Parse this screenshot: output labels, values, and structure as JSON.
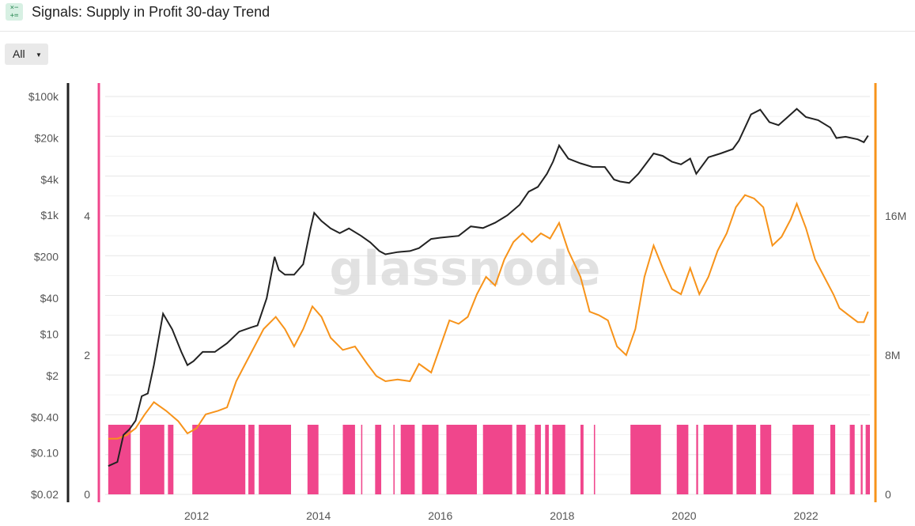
{
  "header": {
    "title": "Signals: Supply in Profit 30-day Trend",
    "icon": "calculator-icon"
  },
  "controls": {
    "range_label": "All"
  },
  "watermark": "glassnode",
  "colors": {
    "price": "#222222",
    "supply": "#f7931a",
    "signal": "#f0468c",
    "grid": "#e6e6e6"
  },
  "chart_data": {
    "type": "line",
    "x_ticks": [
      "2012",
      "2014",
      "2016",
      "2018",
      "2020",
      "2022"
    ],
    "x_range": [
      2010.5,
      2023.05
    ],
    "y_price_ticks": [
      "$100k",
      "$20k",
      "$4k",
      "$1k",
      "$200",
      "$40",
      "$10",
      "$2",
      "$0.40",
      "$0.10",
      "$0.02"
    ],
    "y_price_scale": "log",
    "y_signal_ticks": [
      "4",
      "2",
      "0"
    ],
    "y_signal_range": [
      0,
      4
    ],
    "y_supply_ticks": [
      "16M",
      "8M",
      "0"
    ],
    "y_supply_range": [
      0,
      16000000
    ],
    "grid": true,
    "series": [
      {
        "axis": "price",
        "values": [
          [
            2010.55,
            0.06
          ],
          [
            2010.7,
            0.07
          ],
          [
            2010.8,
            0.2
          ],
          [
            2010.9,
            0.25
          ],
          [
            2011.0,
            0.35
          ],
          [
            2011.1,
            0.9
          ],
          [
            2011.2,
            1.0
          ],
          [
            2011.3,
            3
          ],
          [
            2011.45,
            22
          ],
          [
            2011.6,
            12
          ],
          [
            2011.75,
            5
          ],
          [
            2011.85,
            3
          ],
          [
            2011.95,
            3.5
          ],
          [
            2012.1,
            5
          ],
          [
            2012.3,
            5
          ],
          [
            2012.5,
            7
          ],
          [
            2012.7,
            11
          ],
          [
            2012.9,
            13
          ],
          [
            2013.0,
            14
          ],
          [
            2013.15,
            40
          ],
          [
            2013.28,
            200
          ],
          [
            2013.35,
            120
          ],
          [
            2013.45,
            100
          ],
          [
            2013.6,
            100
          ],
          [
            2013.75,
            150
          ],
          [
            2013.87,
            600
          ],
          [
            2013.93,
            1100
          ],
          [
            2014.05,
            800
          ],
          [
            2014.2,
            600
          ],
          [
            2014.35,
            500
          ],
          [
            2014.5,
            600
          ],
          [
            2014.7,
            450
          ],
          [
            2014.85,
            350
          ],
          [
            2015.0,
            250
          ],
          [
            2015.1,
            220
          ],
          [
            2015.3,
            240
          ],
          [
            2015.5,
            250
          ],
          [
            2015.65,
            280
          ],
          [
            2015.85,
            400
          ],
          [
            2016.0,
            420
          ],
          [
            2016.3,
            450
          ],
          [
            2016.5,
            650
          ],
          [
            2016.7,
            610
          ],
          [
            2016.9,
            750
          ],
          [
            2017.1,
            1000
          ],
          [
            2017.3,
            1500
          ],
          [
            2017.45,
            2500
          ],
          [
            2017.6,
            3000
          ],
          [
            2017.75,
            5000
          ],
          [
            2017.85,
            8000
          ],
          [
            2017.95,
            15000
          ],
          [
            2018.1,
            9000
          ],
          [
            2018.3,
            7500
          ],
          [
            2018.5,
            6500
          ],
          [
            2018.7,
            6500
          ],
          [
            2018.85,
            4000
          ],
          [
            2018.95,
            3700
          ],
          [
            2019.1,
            3500
          ],
          [
            2019.25,
            5000
          ],
          [
            2019.4,
            8000
          ],
          [
            2019.5,
            11000
          ],
          [
            2019.65,
            10000
          ],
          [
            2019.8,
            8000
          ],
          [
            2019.95,
            7200
          ],
          [
            2020.1,
            9000
          ],
          [
            2020.2,
            5000
          ],
          [
            2020.4,
            9500
          ],
          [
            2020.6,
            11000
          ],
          [
            2020.8,
            13000
          ],
          [
            2020.9,
            18000
          ],
          [
            2021.0,
            30000
          ],
          [
            2021.1,
            50000
          ],
          [
            2021.25,
            60000
          ],
          [
            2021.4,
            37000
          ],
          [
            2021.55,
            33000
          ],
          [
            2021.7,
            45000
          ],
          [
            2021.85,
            62000
          ],
          [
            2022.0,
            45000
          ],
          [
            2022.2,
            40000
          ],
          [
            2022.4,
            30000
          ],
          [
            2022.5,
            20000
          ],
          [
            2022.65,
            21000
          ],
          [
            2022.85,
            19000
          ],
          [
            2022.95,
            17000
          ],
          [
            2023.02,
            22000
          ]
        ]
      },
      {
        "axis": "supply",
        "values": [
          [
            2010.55,
            3.2
          ],
          [
            2010.7,
            3.2
          ],
          [
            2010.85,
            3.4
          ],
          [
            2011.0,
            3.8
          ],
          [
            2011.15,
            4.6
          ],
          [
            2011.3,
            5.3
          ],
          [
            2011.5,
            4.8
          ],
          [
            2011.7,
            4.2
          ],
          [
            2011.85,
            3.5
          ],
          [
            2012.0,
            3.8
          ],
          [
            2012.15,
            4.6
          ],
          [
            2012.35,
            4.8
          ],
          [
            2012.5,
            5.0
          ],
          [
            2012.65,
            6.5
          ],
          [
            2012.8,
            7.5
          ],
          [
            2012.95,
            8.5
          ],
          [
            2013.1,
            9.5
          ],
          [
            2013.3,
            10.2
          ],
          [
            2013.45,
            9.5
          ],
          [
            2013.6,
            8.5
          ],
          [
            2013.75,
            9.5
          ],
          [
            2013.9,
            10.8
          ],
          [
            2014.05,
            10.2
          ],
          [
            2014.2,
            9.0
          ],
          [
            2014.4,
            8.3
          ],
          [
            2014.6,
            8.5
          ],
          [
            2014.8,
            7.5
          ],
          [
            2014.95,
            6.8
          ],
          [
            2015.1,
            6.5
          ],
          [
            2015.3,
            6.6
          ],
          [
            2015.5,
            6.5
          ],
          [
            2015.65,
            7.5
          ],
          [
            2015.85,
            7.0
          ],
          [
            2016.0,
            8.5
          ],
          [
            2016.15,
            10.0
          ],
          [
            2016.3,
            9.8
          ],
          [
            2016.45,
            10.2
          ],
          [
            2016.6,
            11.5
          ],
          [
            2016.75,
            12.5
          ],
          [
            2016.9,
            12.0
          ],
          [
            2017.05,
            13.5
          ],
          [
            2017.2,
            14.5
          ],
          [
            2017.35,
            15.0
          ],
          [
            2017.5,
            14.5
          ],
          [
            2017.65,
            15.0
          ],
          [
            2017.8,
            14.7
          ],
          [
            2017.95,
            15.6
          ],
          [
            2018.1,
            14.0
          ],
          [
            2018.3,
            12.5
          ],
          [
            2018.45,
            10.5
          ],
          [
            2018.6,
            10.3
          ],
          [
            2018.75,
            10.0
          ],
          [
            2018.9,
            8.5
          ],
          [
            2019.05,
            8.0
          ],
          [
            2019.2,
            9.5
          ],
          [
            2019.35,
            12.5
          ],
          [
            2019.5,
            14.3
          ],
          [
            2019.65,
            13.0
          ],
          [
            2019.8,
            11.8
          ],
          [
            2019.95,
            11.5
          ],
          [
            2020.1,
            13.0
          ],
          [
            2020.25,
            11.5
          ],
          [
            2020.4,
            12.5
          ],
          [
            2020.55,
            14.0
          ],
          [
            2020.7,
            15.0
          ],
          [
            2020.85,
            16.5
          ],
          [
            2021.0,
            17.2
          ],
          [
            2021.15,
            17.0
          ],
          [
            2021.3,
            16.5
          ],
          [
            2021.45,
            14.3
          ],
          [
            2021.6,
            14.8
          ],
          [
            2021.75,
            15.8
          ],
          [
            2021.85,
            16.7
          ],
          [
            2022.0,
            15.3
          ],
          [
            2022.15,
            13.5
          ],
          [
            2022.3,
            12.5
          ],
          [
            2022.45,
            11.5
          ],
          [
            2022.55,
            10.7
          ],
          [
            2022.7,
            10.3
          ],
          [
            2022.85,
            9.9
          ],
          [
            2022.95,
            9.9
          ],
          [
            2023.02,
            10.5
          ]
        ]
      },
      {
        "axis": "signal",
        "values": [
          [
            2010.55,
            2010.92
          ],
          [
            2011.07,
            2011.47
          ],
          [
            2011.53,
            2011.62
          ],
          [
            2011.93,
            2012.8
          ],
          [
            2012.85,
            2012.95
          ],
          [
            2013.02,
            2013.55
          ],
          [
            2013.82,
            2014.0
          ],
          [
            2014.4,
            2014.6
          ],
          [
            2014.7,
            2014.72
          ],
          [
            2014.93,
            2015.03
          ],
          [
            2015.23,
            2015.25
          ],
          [
            2015.35,
            2015.58
          ],
          [
            2015.7,
            2015.97
          ],
          [
            2016.1,
            2016.6
          ],
          [
            2016.7,
            2017.18
          ],
          [
            2017.25,
            2017.4
          ],
          [
            2017.55,
            2017.65
          ],
          [
            2017.72,
            2017.78
          ],
          [
            2017.84,
            2018.05
          ],
          [
            2018.3,
            2018.35
          ],
          [
            2018.52,
            2018.54
          ],
          [
            2019.12,
            2019.62
          ],
          [
            2019.88,
            2020.07
          ],
          [
            2020.2,
            2020.23
          ],
          [
            2020.32,
            2020.8
          ],
          [
            2020.86,
            2021.18
          ],
          [
            2021.25,
            2021.43
          ],
          [
            2021.78,
            2022.13
          ],
          [
            2022.4,
            2022.48
          ],
          [
            2022.72,
            2022.8
          ],
          [
            2022.9,
            2022.93
          ],
          [
            2022.98,
            2023.05
          ]
        ]
      }
    ]
  }
}
